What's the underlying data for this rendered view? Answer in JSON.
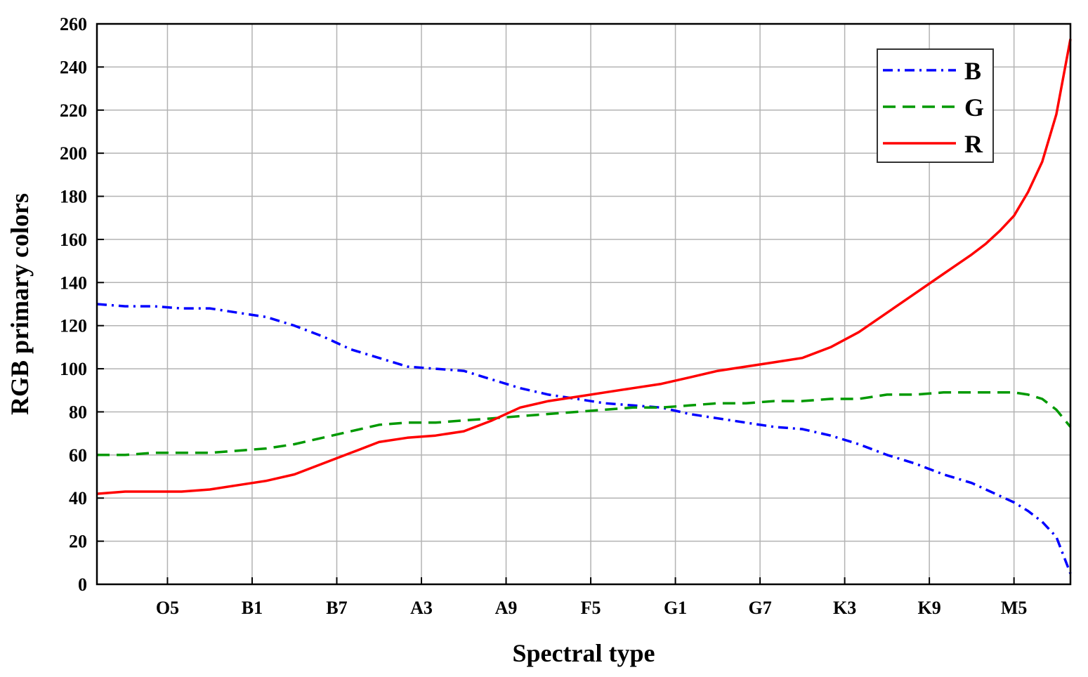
{
  "chart_data": {
    "type": "line",
    "xlabel": "Spectral type",
    "ylabel": "RGB primary colors",
    "ylim": [
      0,
      260
    ],
    "xlim": [
      0,
      69
    ],
    "yticks": [
      0,
      20,
      40,
      60,
      80,
      100,
      120,
      140,
      160,
      180,
      200,
      220,
      240,
      260
    ],
    "xticks": [
      {
        "label": "O5",
        "pos": 5
      },
      {
        "label": "B1",
        "pos": 11
      },
      {
        "label": "B7",
        "pos": 17
      },
      {
        "label": "A3",
        "pos": 23
      },
      {
        "label": "A9",
        "pos": 29
      },
      {
        "label": "F5",
        "pos": 35
      },
      {
        "label": "G1",
        "pos": 41
      },
      {
        "label": "G7",
        "pos": 47
      },
      {
        "label": "K3",
        "pos": 53
      },
      {
        "label": "K9",
        "pos": 59
      },
      {
        "label": "M5",
        "pos": 65
      }
    ],
    "grid": true,
    "legend_position": "top-right",
    "series": [
      {
        "name": "B",
        "color": "#0000ff",
        "style": "dashdot",
        "x": [
          0,
          2,
          4,
          6,
          8,
          10,
          12,
          14,
          16,
          18,
          20,
          22,
          24,
          26,
          28,
          30,
          32,
          34,
          36,
          38,
          40,
          42,
          44,
          46,
          48,
          50,
          52,
          54,
          56,
          58,
          60,
          62,
          64,
          65,
          66,
          67,
          68,
          69
        ],
        "y": [
          130,
          129,
          129,
          128,
          128,
          126,
          124,
          120,
          115,
          109,
          105,
          101,
          100,
          99,
          95,
          91,
          88,
          86,
          84,
          83,
          82,
          79,
          77,
          75,
          73,
          72,
          69,
          65,
          60,
          56,
          51,
          47,
          41,
          38,
          34,
          29,
          22,
          5
        ]
      },
      {
        "name": "G",
        "color": "#009900",
        "style": "dashed",
        "x": [
          0,
          2,
          4,
          6,
          8,
          10,
          12,
          14,
          16,
          18,
          20,
          22,
          24,
          26,
          28,
          30,
          32,
          34,
          36,
          38,
          40,
          42,
          44,
          46,
          48,
          50,
          52,
          54,
          56,
          58,
          60,
          62,
          64,
          65,
          66,
          67,
          68,
          69
        ],
        "y": [
          60,
          60,
          61,
          61,
          61,
          62,
          63,
          65,
          68,
          71,
          74,
          75,
          75,
          76,
          77,
          78,
          79,
          80,
          81,
          82,
          82,
          83,
          84,
          84,
          85,
          85,
          86,
          86,
          88,
          88,
          89,
          89,
          89,
          89,
          88,
          86,
          81,
          73
        ]
      },
      {
        "name": "R",
        "color": "#ff0000",
        "style": "solid",
        "x": [
          0,
          2,
          4,
          6,
          8,
          10,
          12,
          14,
          16,
          18,
          20,
          22,
          24,
          26,
          28,
          30,
          32,
          34,
          36,
          38,
          40,
          42,
          44,
          46,
          48,
          50,
          52,
          54,
          56,
          58,
          60,
          62,
          63,
          64,
          65,
          66,
          67,
          68,
          69
        ],
        "y": [
          42,
          43,
          43,
          43,
          44,
          46,
          48,
          51,
          56,
          61,
          66,
          68,
          69,
          71,
          76,
          82,
          85,
          87,
          89,
          91,
          93,
          96,
          99,
          101,
          103,
          105,
          110,
          117,
          126,
          135,
          144,
          153,
          158,
          164,
          171,
          182,
          196,
          218,
          253
        ]
      }
    ]
  }
}
